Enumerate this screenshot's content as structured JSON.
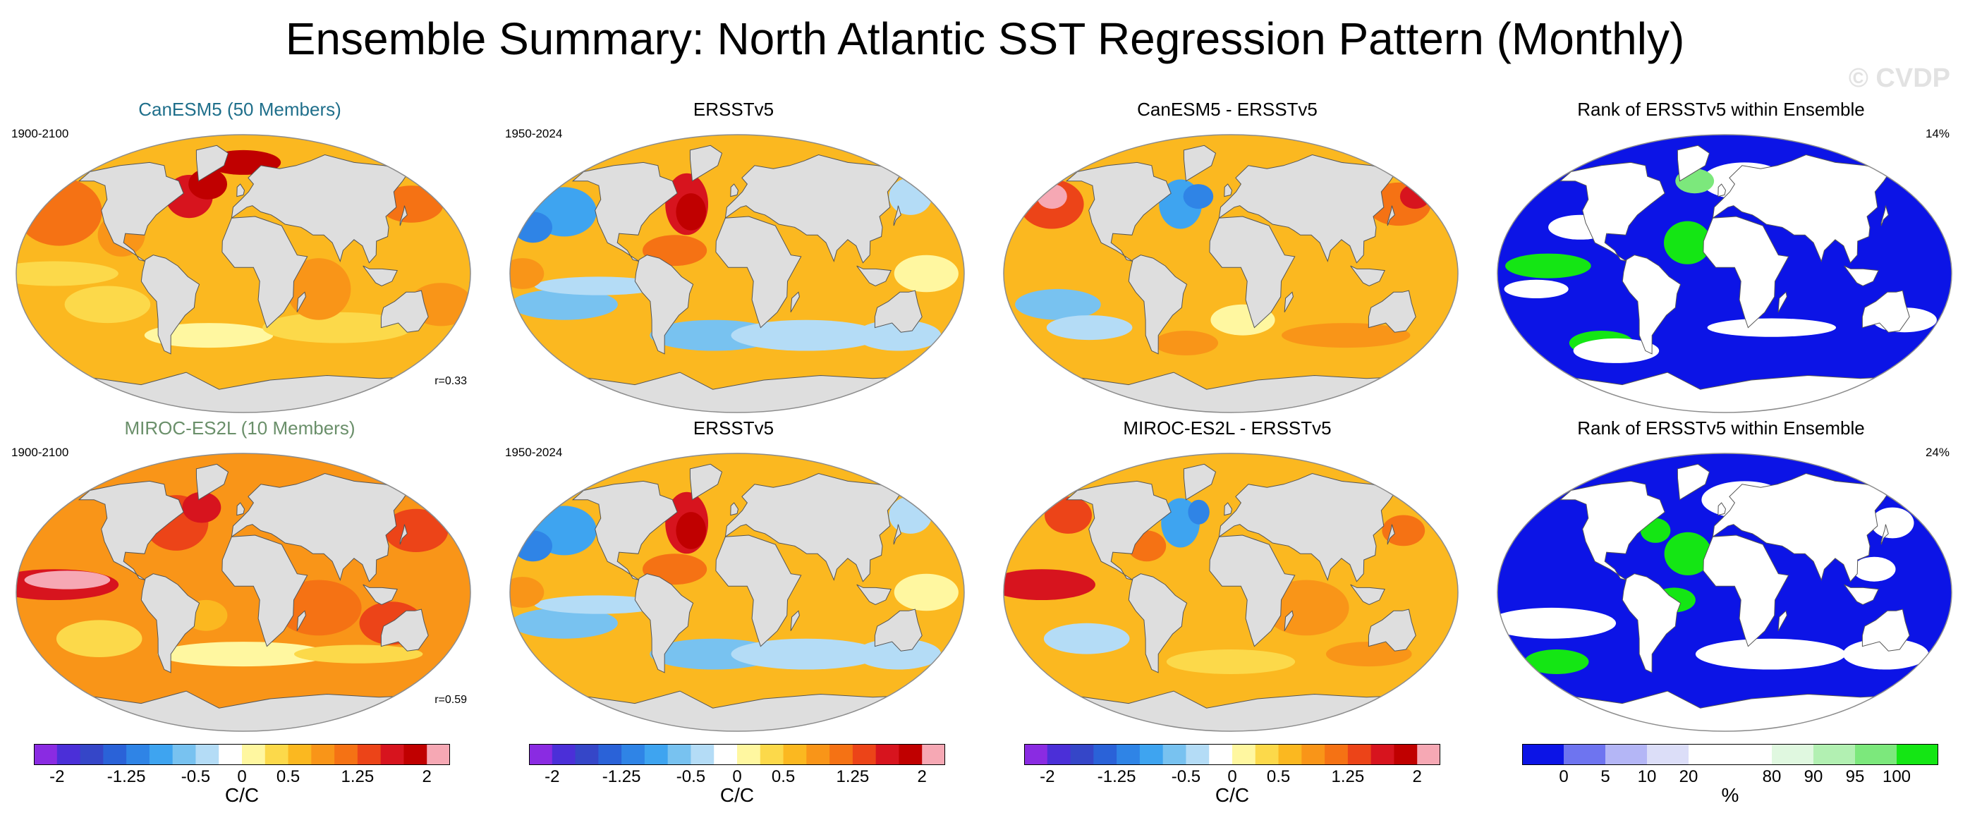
{
  "title": "Ensemble Summary: North Atlantic SST Regression Pattern (Monthly)",
  "watermark": "© CVDP",
  "rows": [
    {
      "model": {
        "title": "CanESM5 (50 Members)",
        "title_color": "#1f6f8b",
        "period": "1900-2100",
        "corr": "r=0.33"
      },
      "obs": {
        "title": "ERSSTv5",
        "period": "1950-2024"
      },
      "diff": {
        "title": "CanESM5 - ERSSTv5"
      },
      "rank": {
        "title": "Rank of ERSSTv5 within Ensemble",
        "pct": "14%"
      }
    },
    {
      "model": {
        "title": "MIROC-ES2L (10 Members)",
        "title_color": "#6a8f6a",
        "period": "1900-2100",
        "corr": "r=0.59"
      },
      "obs": {
        "title": "ERSSTv5",
        "period": "1950-2024"
      },
      "diff": {
        "title": "MIROC-ES2L - ERSSTv5"
      },
      "rank": {
        "title": "Rank of ERSSTv5 within Ensemble",
        "pct": "24%"
      }
    }
  ],
  "chart_data": [
    {
      "type": "colorbar",
      "name": "sst-regression",
      "unit": "C/C",
      "colors": [
        "#8a2be2",
        "#4b2fd8",
        "#3546c8",
        "#2a62d8",
        "#2f84e6",
        "#3ea4f0",
        "#78c2f0",
        "#b4dcf6",
        "#ffffff",
        "#fff7a0",
        "#fcd94a",
        "#fbb820",
        "#f99518",
        "#f57214",
        "#ec4418",
        "#d7141e",
        "#c00000",
        "#f6a8b4"
      ],
      "tick_labels": [
        "-2",
        "-1.25",
        "-0.5",
        "0",
        "0.5",
        "1.25",
        "2"
      ],
      "tick_index": [
        1,
        4,
        7,
        9,
        11,
        14,
        17
      ]
    },
    {
      "type": "colorbar",
      "name": "rank",
      "unit": "%",
      "colors": [
        "#0c14e6",
        "#6e74f0",
        "#b4b6f6",
        "#dcdef8",
        "#ffffff",
        "#ffffff",
        "#e0f8e0",
        "#b2f0b2",
        "#7ce87c",
        "#14e614"
      ],
      "tick_labels": [
        "0",
        "5",
        "10",
        "20",
        "80",
        "90",
        "95",
        "100"
      ],
      "tick_index": [
        1,
        2,
        3,
        4,
        6,
        7,
        8,
        9
      ]
    },
    {
      "type": "map-grid",
      "panels_per_row": 4,
      "rows": 2,
      "projection": "Robinson-like global",
      "fields": [
        "model ensemble mean",
        "observations",
        "difference",
        "rank"
      ]
    }
  ]
}
